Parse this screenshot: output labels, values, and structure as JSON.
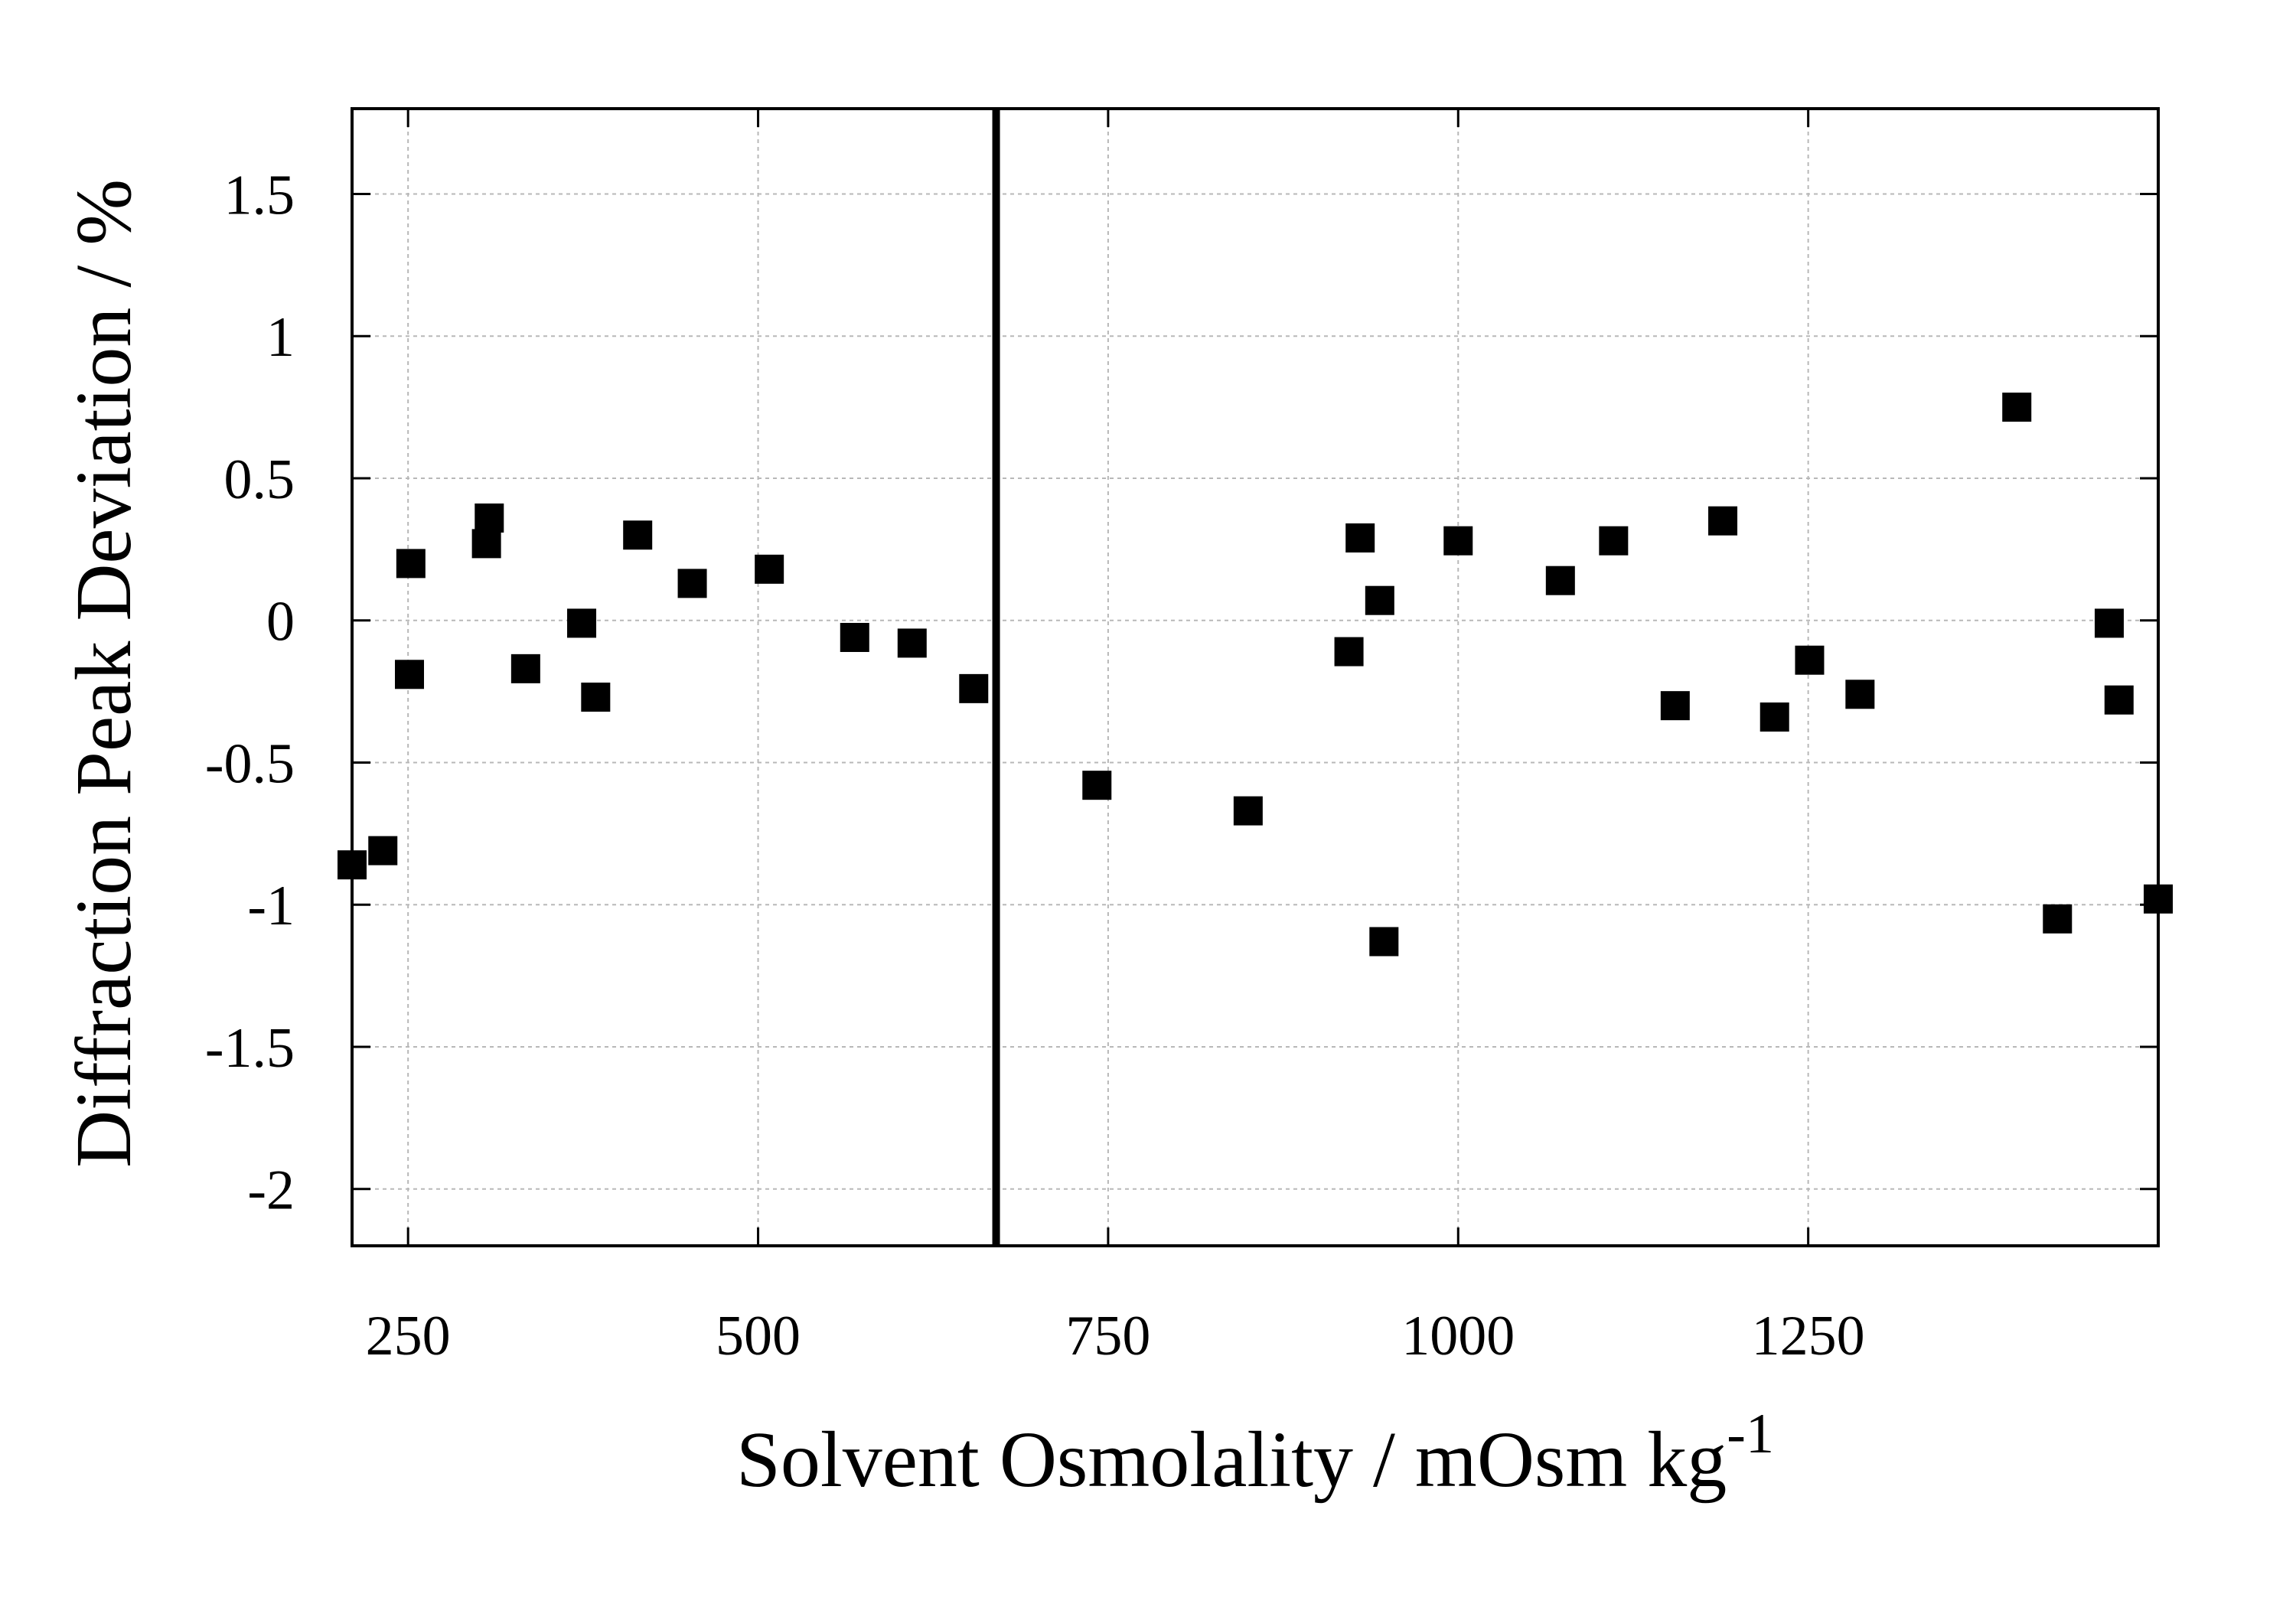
{
  "chart_data": {
    "type": "scatter",
    "xlabel": "Solvent Osmolality / mOsm kg",
    "xlabel_superscript": "-1",
    "ylabel": "Diffraction Peak Deviation / %",
    "xlim": [
      210,
      1500
    ],
    "ylim": [
      -2.2,
      1.8
    ],
    "xticks": [
      250,
      500,
      750,
      1000,
      1250
    ],
    "xtick_labels": [
      "250",
      "500",
      "750",
      "1000",
      "1250"
    ],
    "yticks": [
      1.5,
      1,
      0.5,
      0,
      -0.5,
      -1,
      -1.5,
      -2
    ],
    "ytick_labels": [
      "1.5",
      "1",
      "0.5",
      "0",
      "-0.5",
      "-1",
      "-1.5",
      "-2"
    ],
    "grid": true,
    "marker": "square",
    "vertical_line_x": 670,
    "series": [
      {
        "x": [
          210,
          232,
          252,
          251,
          306,
          308,
          334,
          374,
          384,
          414,
          453,
          508,
          569,
          610,
          654,
          742,
          850,
          922,
          930,
          944,
          947,
          1000,
          1073,
          1111,
          1155,
          1189,
          1226,
          1251,
          1287,
          1399,
          1428,
          1465,
          1472,
          1500
        ],
        "y": [
          -0.86,
          -0.81,
          0.2,
          -0.19,
          0.27,
          0.36,
          -0.17,
          -0.01,
          -0.27,
          0.3,
          0.13,
          0.18,
          -0.06,
          -0.08,
          -0.24,
          -0.58,
          -0.67,
          -0.11,
          0.29,
          0.07,
          -1.13,
          0.28,
          0.14,
          0.28,
          -0.3,
          0.35,
          -0.34,
          -0.14,
          -0.26,
          0.75,
          -1.05,
          -0.01,
          -0.28,
          -0.98
        ]
      }
    ]
  }
}
